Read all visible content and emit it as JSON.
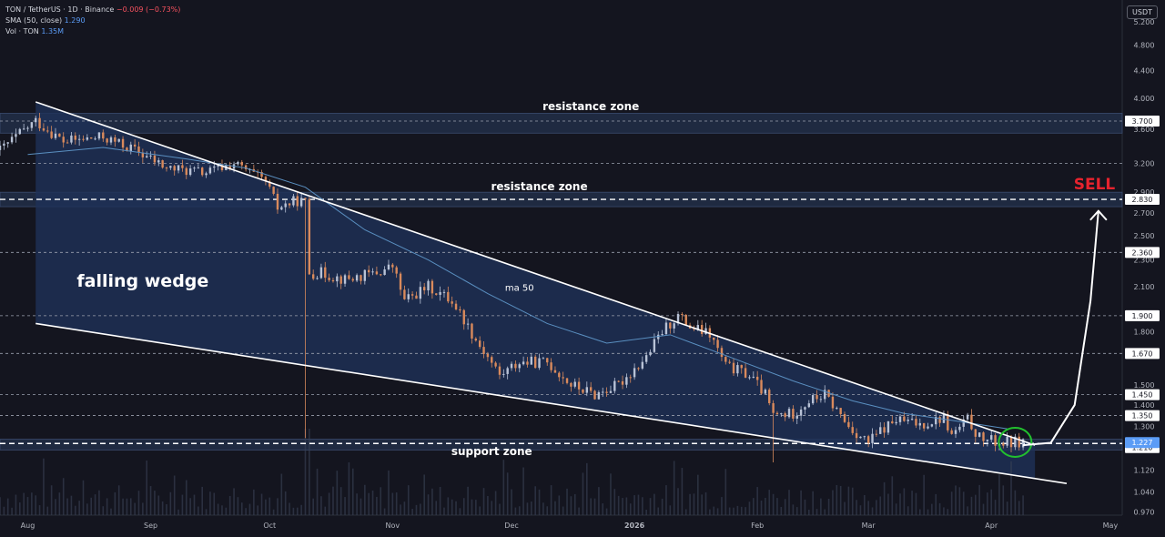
{
  "legend": {
    "symbol": "TON / TetherUS · 1D · Binance",
    "change": "−0.009 (−0.73%)",
    "sma_label": "SMA (50, close)",
    "sma_value": "1.290",
    "vol_label": "Vol · TON",
    "vol_value": "1.35M"
  },
  "currency": "USDT",
  "colors": {
    "background": "#14151f",
    "up": "#b8c2d6",
    "down": "#d98a5c",
    "ma": "#5a8fc0",
    "zone": "#23324e",
    "sell": "#e8232e",
    "circle": "#22c02e"
  },
  "chart_data": {
    "type": "candlestick",
    "scale": "log",
    "ylim": [
      0.96,
      5.6
    ],
    "y_ticks": [
      "5.200",
      "4.800",
      "4.400",
      "4.000",
      "3.600",
      "3.200",
      "2.900",
      "2.700",
      "2.500",
      "2.300",
      "2.100",
      "1.900",
      "1.800",
      "1.670",
      "1.500",
      "1.400",
      "1.300",
      "1.210",
      "1.120",
      "1.040",
      "0.970"
    ],
    "price_tags": [
      {
        "value": 3.7,
        "label": "3.700"
      },
      {
        "value": 2.83,
        "label": "2.830"
      },
      {
        "value": 2.36,
        "label": "2.360"
      },
      {
        "value": 1.9,
        "label": "1.900"
      },
      {
        "value": 1.67,
        "label": "1.670"
      },
      {
        "value": 1.45,
        "label": "1.450"
      },
      {
        "value": 1.35,
        "label": "1.350"
      },
      {
        "value": 1.21,
        "label": "1.210"
      }
    ],
    "current_price": {
      "value": 1.227,
      "label": "1.227"
    },
    "x_ticks": [
      "Aug",
      "Sep",
      "Oct",
      "Nov",
      "Dec",
      "2026",
      "Feb",
      "Mar",
      "Apr",
      "May"
    ],
    "x_range": [
      "2025-07-25",
      "2026-05-04"
    ],
    "x_tick_dates": [
      "2025-08-01",
      "2025-09-01",
      "2025-10-01",
      "2025-11-01",
      "2025-12-01",
      "2026-01-01",
      "2026-02-01",
      "2026-03-01",
      "2026-04-01",
      "2026-05-01"
    ],
    "dashed_levels": [
      3.7,
      3.2,
      2.83,
      2.36,
      1.9,
      1.67,
      1.45,
      1.35,
      1.227
    ],
    "zones": [
      {
        "label": "resistance zone",
        "low": 3.55,
        "high": 3.8
      },
      {
        "label": "resistance zone",
        "low": 2.76,
        "high": 2.9
      },
      {
        "label": "support zone",
        "low": 1.2,
        "high": 1.245
      }
    ],
    "wedge": {
      "label": "falling wedge",
      "upper": [
        [
          "2025-08-03",
          3.95
        ],
        [
          "2026-04-12",
          1.22
        ]
      ],
      "lower": [
        [
          "2025-08-03",
          1.85
        ],
        [
          "2026-04-20",
          1.07
        ]
      ]
    },
    "ma_label": "ma 50",
    "ma50": [
      [
        "2025-08-01",
        3.3
      ],
      [
        "2025-08-20",
        3.38
      ],
      [
        "2025-09-10",
        3.25
      ],
      [
        "2025-09-25",
        3.15
      ],
      [
        "2025-10-10",
        2.95
      ],
      [
        "2025-10-25",
        2.55
      ],
      [
        "2025-11-10",
        2.3
      ],
      [
        "2025-11-25",
        2.05
      ],
      [
        "2025-12-10",
        1.85
      ],
      [
        "2025-12-25",
        1.73
      ],
      [
        "2026-01-10",
        1.78
      ],
      [
        "2026-01-25",
        1.65
      ],
      [
        "2026-02-10",
        1.52
      ],
      [
        "2026-02-25",
        1.42
      ],
      [
        "2026-03-10",
        1.36
      ],
      [
        "2026-03-25",
        1.32
      ],
      [
        "2026-04-05",
        1.29
      ]
    ],
    "anchors": [
      [
        "2025-07-25",
        3.35
      ],
      [
        "2025-08-03",
        3.7
      ],
      [
        "2025-08-10",
        3.45
      ],
      [
        "2025-08-20",
        3.5
      ],
      [
        "2025-08-28",
        3.35
      ],
      [
        "2025-09-05",
        3.15
      ],
      [
        "2025-09-15",
        3.1
      ],
      [
        "2025-09-22",
        3.2
      ],
      [
        "2025-09-30",
        3.0
      ],
      [
        "2025-10-03",
        2.75
      ],
      [
        "2025-10-08",
        2.82
      ],
      [
        "2025-10-10",
        2.8
      ],
      [
        "2025-10-11",
        2.2
      ],
      [
        "2025-10-14",
        2.2
      ],
      [
        "2025-10-20",
        2.15
      ],
      [
        "2025-10-28",
        2.2
      ],
      [
        "2025-11-01",
        2.25
      ],
      [
        "2025-11-04",
        2.0
      ],
      [
        "2025-11-10",
        2.1
      ],
      [
        "2025-11-16",
        2.0
      ],
      [
        "2025-11-22",
        1.75
      ],
      [
        "2025-11-28",
        1.55
      ],
      [
        "2025-12-03",
        1.62
      ],
      [
        "2025-12-10",
        1.62
      ],
      [
        "2025-12-16",
        1.5
      ],
      [
        "2025-12-22",
        1.45
      ],
      [
        "2025-12-28",
        1.5
      ],
      [
        "2026-01-04",
        1.65
      ],
      [
        "2026-01-08",
        1.8
      ],
      [
        "2026-01-12",
        1.9
      ],
      [
        "2026-01-15",
        1.83
      ],
      [
        "2026-01-20",
        1.78
      ],
      [
        "2026-01-24",
        1.6
      ],
      [
        "2026-01-30",
        1.55
      ],
      [
        "2026-02-03",
        1.45
      ],
      [
        "2026-02-05",
        1.35
      ],
      [
        "2026-02-10",
        1.36
      ],
      [
        "2026-02-14",
        1.42
      ],
      [
        "2026-02-18",
        1.45
      ],
      [
        "2026-02-24",
        1.3
      ],
      [
        "2026-03-01",
        1.23
      ],
      [
        "2026-03-04",
        1.28
      ],
      [
        "2026-03-08",
        1.33
      ],
      [
        "2026-03-14",
        1.31
      ],
      [
        "2026-03-20",
        1.34
      ],
      [
        "2026-03-22",
        1.26
      ],
      [
        "2026-03-26",
        1.33
      ],
      [
        "2026-03-29",
        1.25
      ],
      [
        "2026-04-03",
        1.23
      ],
      [
        "2026-04-09",
        1.235
      ]
    ],
    "annotations": [
      {
        "text": "resistance zone",
        "date": "2025-12-21",
        "value": 3.84
      },
      {
        "text": "resistance zone",
        "date": "2025-12-08",
        "value": 2.92
      },
      {
        "text": "support zone",
        "date": "2025-11-26",
        "value": 1.18
      },
      {
        "text": "falling wedge",
        "date": "2025-08-30",
        "value": 2.1
      },
      {
        "text": "ma 50",
        "date": "2025-12-03",
        "value": 2.07
      },
      {
        "text": "SELL",
        "date": "2026-04-27",
        "value": 2.93
      }
    ],
    "projection_arrow": [
      [
        "2026-04-09",
        1.22
      ],
      [
        "2026-04-16",
        1.23
      ],
      [
        "2026-04-22",
        1.4
      ],
      [
        "2026-04-26",
        2.0
      ],
      [
        "2026-04-28",
        2.72
      ]
    ]
  }
}
